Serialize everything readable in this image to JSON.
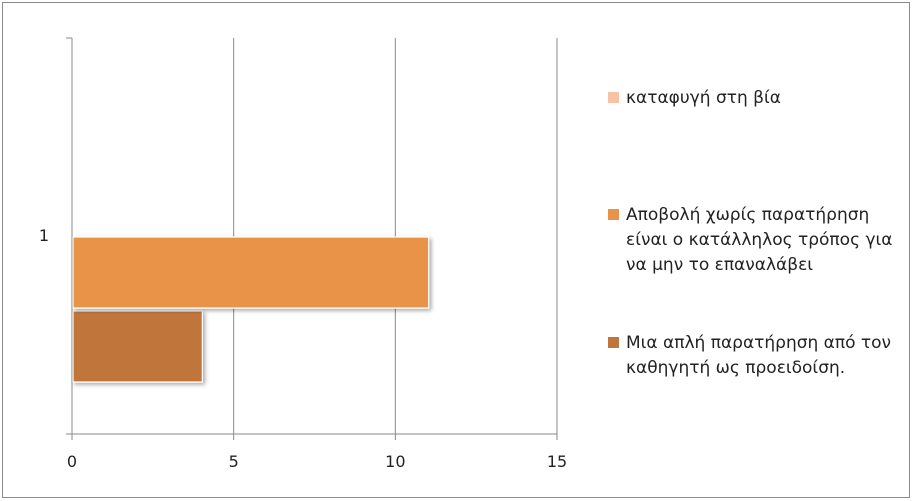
{
  "chart_data": {
    "type": "bar",
    "orientation": "horizontal",
    "categories": [
      "1"
    ],
    "series": [
      {
        "name": "Μια απλή παρατήρηση από τον καθηγητή ως προειδοίση.",
        "values": [
          4
        ],
        "color": "#c0753a"
      },
      {
        "name": "Αποβολή χωρίς παρατήρηση είναι ο κατάλληλος τρόπος για να μην το επαναλάβει",
        "values": [
          11
        ],
        "color": "#e9934a"
      },
      {
        "name": "καταφυγή στη βία",
        "values": [
          0
        ],
        "color": "#f8c3a5"
      }
    ],
    "xlim": [
      0,
      15
    ],
    "xticks": [
      "0",
      "5",
      "10",
      "15"
    ],
    "grid": true,
    "legend_position": "right",
    "legend_order": [
      2,
      1,
      0
    ]
  }
}
